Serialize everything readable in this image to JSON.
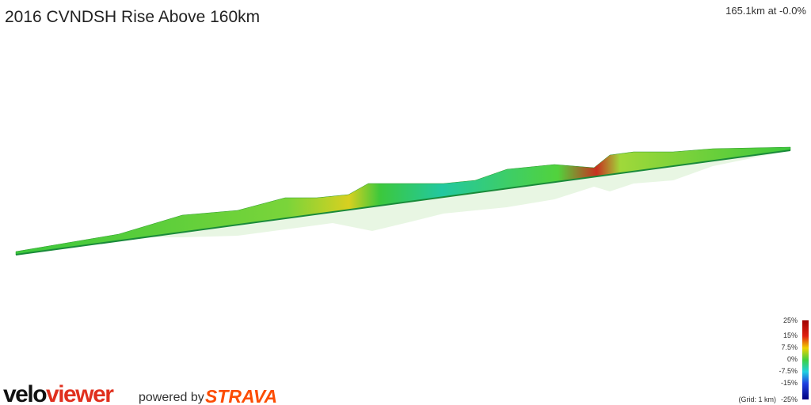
{
  "header": {
    "title": "2016 CVNDSH Rise Above 160km",
    "position": "165.1km at -0.0%"
  },
  "legend": {
    "labels": [
      "25%",
      "15%",
      "7.5%",
      "0%",
      "-7.5%",
      "-15%",
      "-25%"
    ],
    "grid_note": "(Grid: 1 km)"
  },
  "branding": {
    "logo_velo": "velo",
    "logo_viewer": "viewer",
    "powered_by": "powered by",
    "strava": "STRAVA"
  }
}
